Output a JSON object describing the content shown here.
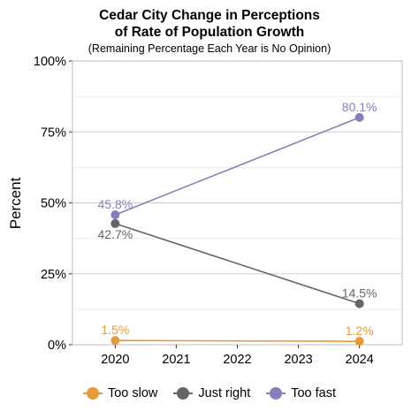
{
  "chart_data": {
    "type": "line",
    "title_line1": "Cedar City Change in Perceptions",
    "title_line2": "of Rate of Population Growth",
    "subtitle": "(Remaining Percentage Each Year is No Opinion)",
    "xlabel": "",
    "ylabel": "Percent",
    "xlim": [
      2019.3,
      2024.7
    ],
    "ylim": [
      0,
      100
    ],
    "x_ticks": [
      2020,
      2021,
      2022,
      2023,
      2024
    ],
    "y_ticks": [
      0,
      25,
      50,
      75,
      100
    ],
    "y_tick_labels": [
      "0%",
      "25%",
      "50%",
      "75%",
      "100%"
    ],
    "grid": true,
    "legend_position": "bottom",
    "series": [
      {
        "name": "Too slow",
        "color": "#e69a3c",
        "x": [
          2020,
          2024
        ],
        "values": [
          1.5,
          1.2
        ],
        "labels": [
          "1.5%",
          "1.2%"
        ]
      },
      {
        "name": "Just right",
        "color": "#666666",
        "x": [
          2020,
          2024
        ],
        "values": [
          42.7,
          14.5
        ],
        "labels": [
          "42.7%",
          "14.5%"
        ]
      },
      {
        "name": "Too fast",
        "color": "#8a7dbb",
        "x": [
          2020,
          2024
        ],
        "values": [
          45.8,
          80.1
        ],
        "labels": [
          "45.8%",
          "80.1%"
        ]
      }
    ]
  }
}
